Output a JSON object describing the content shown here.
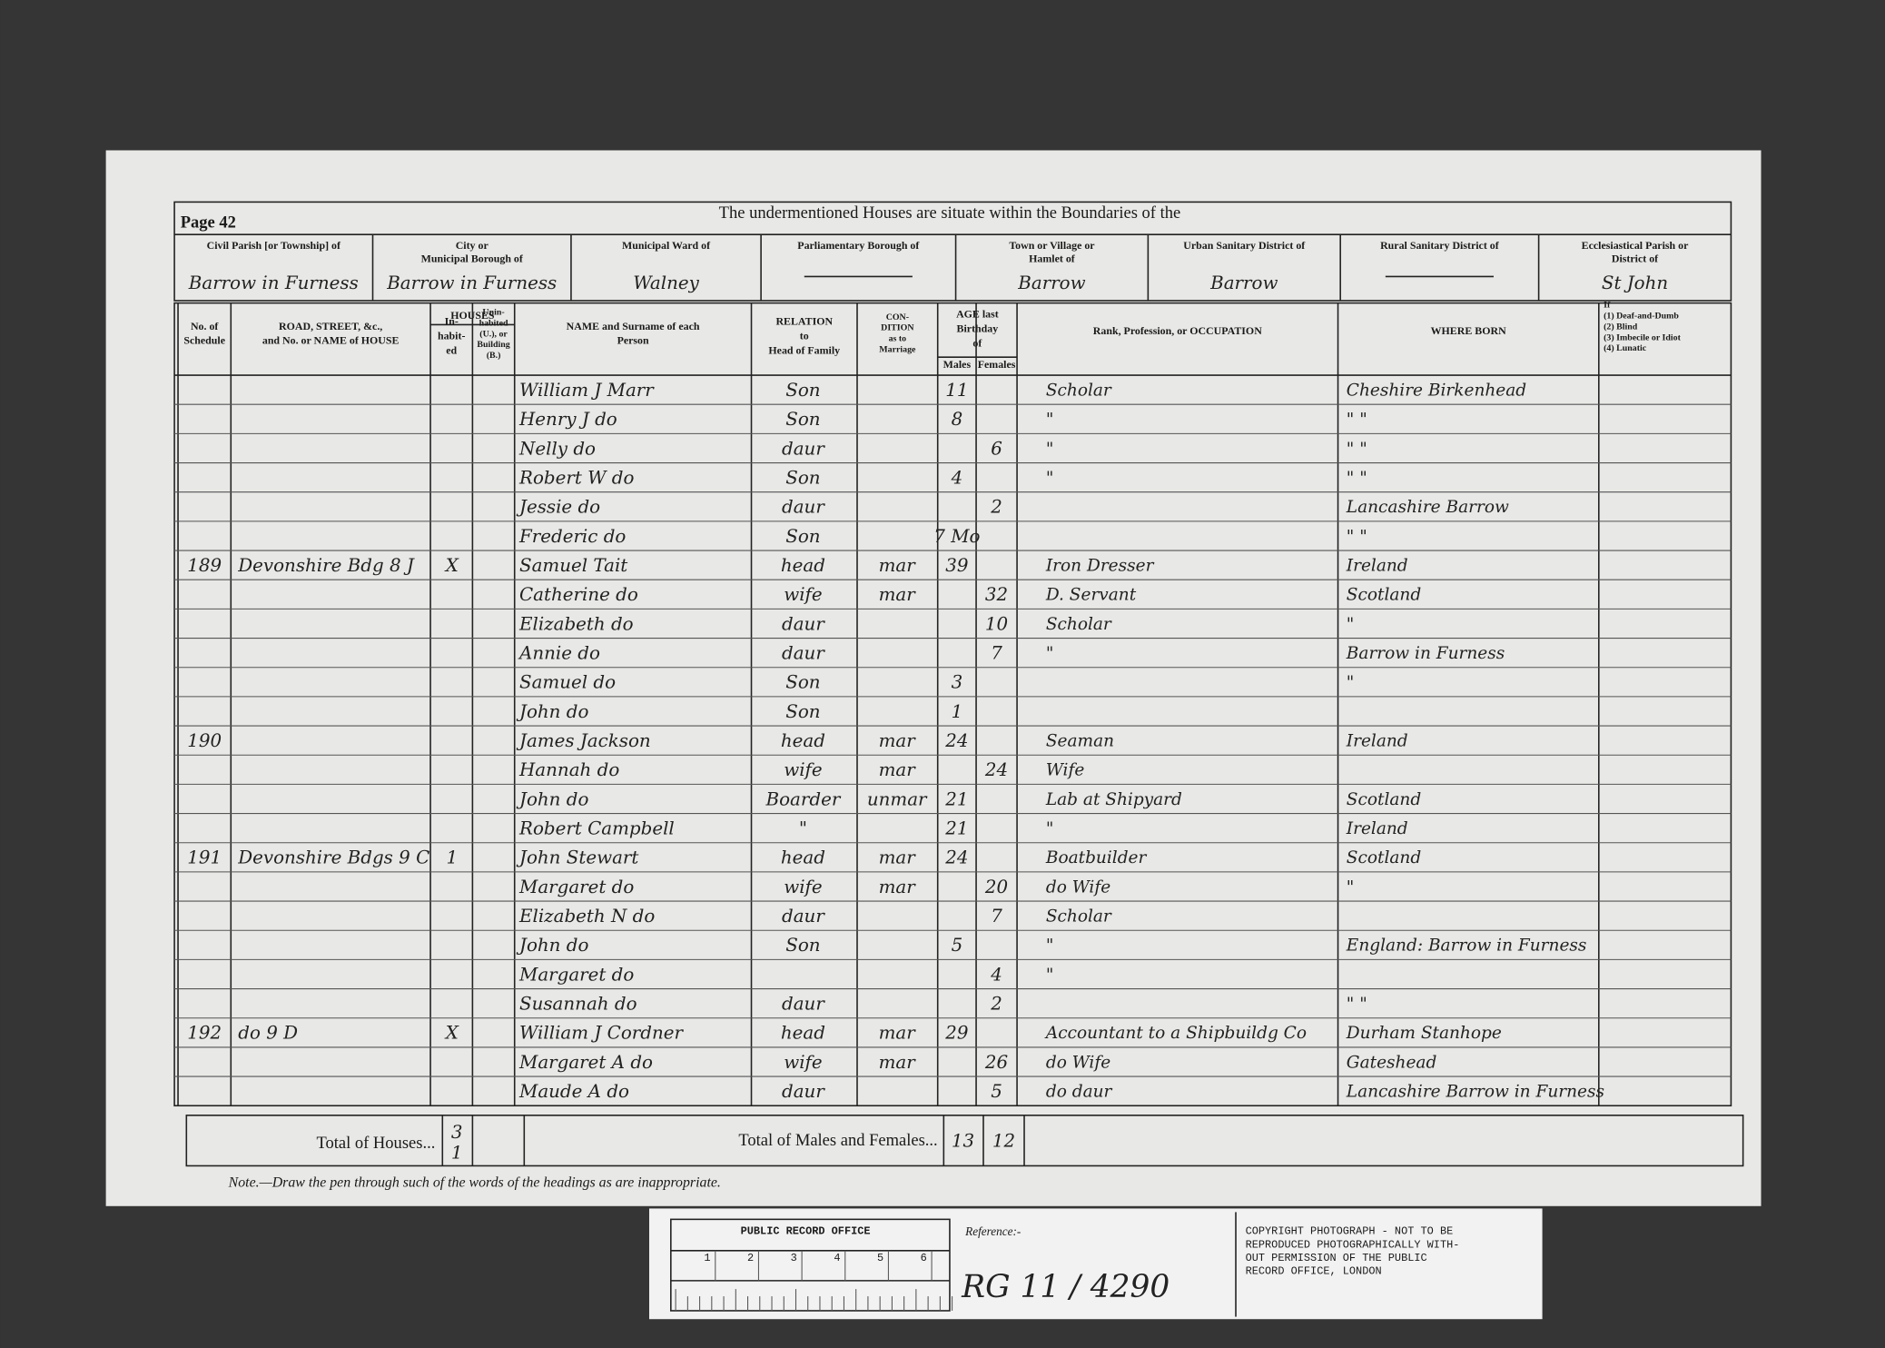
{
  "header": {
    "page": "Page 42",
    "title": "The undermentioned Houses are situate within the Boundaries of the",
    "districts": [
      {
        "label": [
          "Civil Parish [or Township] of"
        ],
        "value": "Barrow in Furness"
      },
      {
        "label": [
          "City or",
          "Municipal Borough of"
        ],
        "value": "Barrow in Furness"
      },
      {
        "label": [
          "Municipal Ward of"
        ],
        "value": "Walney"
      },
      {
        "label": [
          "Parliamentary Borough of"
        ]
      },
      {
        "label": [
          "Town or Village or",
          "Hamlet of"
        ],
        "value": "Barrow"
      },
      {
        "label": [
          "Urban Sanitary District of"
        ],
        "value": "Barrow"
      },
      {
        "label": [
          "Rural Sanitary District of"
        ]
      },
      {
        "label": [
          "Ecclesiastical Parish or",
          "District of"
        ],
        "value": "St John"
      }
    ]
  },
  "table": {
    "columns": [
      {
        "key": "schedule",
        "label": [
          "No. of",
          "Schedule"
        ]
      },
      {
        "key": "road",
        "label": [
          "ROAD, STREET, &c.,",
          "and No. or NAME of HOUSE"
        ]
      },
      {
        "key": "inhabited",
        "label": [
          "In-",
          "habit-",
          "ed"
        ]
      },
      {
        "key": "uninhabited",
        "label": [
          "Unin-",
          "habited",
          "(U.), or",
          "Building",
          "(B.)"
        ]
      },
      {
        "key": "name",
        "label": [
          "NAME and Surname of each",
          "Person"
        ]
      },
      {
        "key": "relation",
        "label": [
          "RELATION",
          "to",
          "Head of Family"
        ]
      },
      {
        "key": "condition",
        "label": [
          "CON-",
          "DITION",
          "as to",
          "Marriage"
        ]
      },
      {
        "key": "age_male",
        "label": [
          "Males"
        ]
      },
      {
        "key": "age_female",
        "label": [
          "Females"
        ]
      },
      {
        "key": "occupation",
        "label": [
          "Rank, Profession, or OCCUPATION"
        ]
      },
      {
        "key": "born",
        "label": [
          "WHERE BORN"
        ]
      },
      {
        "key": "infirmity",
        "label": [
          "If",
          "(1) Deaf-and-Dumb",
          "(2) Blind",
          "(3) Imbecile or Idiot",
          "(4) Lunatic"
        ]
      }
    ],
    "group_headers": {
      "houses": "HOUSES",
      "age": [
        "AGE last",
        "Birthday",
        "of"
      ]
    },
    "rows": [
      {
        "name": "William J Marr",
        "relation": "Son",
        "age_male": "11",
        "occupation": "Scholar",
        "born": "Cheshire Birkenhead"
      },
      {
        "name": "Henry J    do",
        "relation": "Son",
        "age_male": "8",
        "occupation": "\"",
        "born": "\"     \""
      },
      {
        "name": "Nelly        do",
        "relation": "daur",
        "age_female": "6",
        "occupation": "\"",
        "born": "\"     \""
      },
      {
        "name": "Robert W   do",
        "relation": "Son",
        "age_male": "4",
        "occupation": "\"",
        "born": "\"     \""
      },
      {
        "name": "Jessie       do",
        "relation": "daur",
        "age_female": "2",
        "born": "Lancashire Barrow"
      },
      {
        "name": "Frederic     do",
        "relation": "Son",
        "age_male": "7 Mo",
        "born": "\"     \""
      },
      {
        "schedule": "189",
        "road": "Devonshire Bdg 8 J",
        "inhabited": "X",
        "name": "Samuel Tait",
        "relation": "head",
        "condition": "mar",
        "age_male": "39",
        "occupation": "Iron Dresser",
        "born": "Ireland"
      },
      {
        "name": "Catherine   do",
        "relation": "wife",
        "condition": "mar",
        "age_female": "32",
        "occupation": "D. Servant",
        "born": "Scotland"
      },
      {
        "name": "Elizabeth   do",
        "relation": "daur",
        "age_female": "10",
        "occupation": "Scholar",
        "born": "\""
      },
      {
        "name": "Annie        do",
        "relation": "daur",
        "age_female": "7",
        "occupation": "\"",
        "born": "Barrow in Furness"
      },
      {
        "name": "Samuel      do",
        "relation": "Son",
        "age_male": "3",
        "born": "\""
      },
      {
        "name": "John         do",
        "relation": "Son",
        "age_male": "1"
      },
      {
        "schedule": "190",
        "name": "James Jackson",
        "relation": "head",
        "condition": "mar",
        "age_male": "24",
        "occupation": "Seaman",
        "born": "Ireland"
      },
      {
        "name": "Hannah      do",
        "relation": "wife",
        "condition": "mar",
        "age_female": "24",
        "occupation": "Wife"
      },
      {
        "name": "John         do",
        "relation": "Boarder",
        "condition": "unmar",
        "age_male": "21",
        "occupation": "Lab at Shipyard",
        "born": "Scotland"
      },
      {
        "name": "Robert Campbell",
        "relation": "\"",
        "age_male": "21",
        "occupation": "\"",
        "born": "Ireland"
      },
      {
        "schedule": "191",
        "road": "Devonshire Bdgs 9 C",
        "inhabited": "1",
        "name": "John Stewart",
        "relation": "head",
        "condition": "mar",
        "age_male": "24",
        "occupation": "Boatbuilder",
        "born": "Scotland"
      },
      {
        "name": "Margaret    do",
        "relation": "wife",
        "condition": "mar",
        "age_female": "20",
        "occupation": "do    Wife",
        "born": "\""
      },
      {
        "name": "Elizabeth N  do",
        "relation": "daur",
        "age_female": "7",
        "occupation": "Scholar"
      },
      {
        "name": "John         do",
        "relation": "Son",
        "age_male": "5",
        "occupation": "\"",
        "born": "England: Barrow in Furness"
      },
      {
        "name": "Margaret    do",
        "age_female": "4",
        "occupation": "\""
      },
      {
        "name": "Susannah    do",
        "relation": "daur",
        "age_female": "2",
        "born": "\"     \""
      },
      {
        "schedule": "192",
        "road": "do    9 D",
        "inhabited": "X",
        "name": "William J Cordner",
        "relation": "head",
        "condition": "mar",
        "age_male": "29",
        "occupation": "Accountant to a Shipbuildg Co",
        "born": "Durham  Stanhope"
      },
      {
        "name": "Margaret A  do",
        "relation": "wife",
        "condition": "mar",
        "age_female": "26",
        "occupation": "do          Wife",
        "born": "Gateshead"
      },
      {
        "name": "Maude A    do",
        "relation": "daur",
        "age_female": "5",
        "occupation": "do          daur",
        "born": "Lancashire Barrow in Furness"
      }
    ],
    "totals": {
      "houses_label": "Total of Houses...",
      "houses": "3",
      "uninhabited": "1",
      "persons_label": "Total of Males and Females...",
      "males": "13",
      "females": "12"
    }
  },
  "note": "Note.—Draw the pen through such of the words of the headings as are inappropriate.",
  "footer": {
    "office": "PUBLIC RECORD OFFICE",
    "ruler": [
      "1",
      "2",
      "3",
      "4",
      "5",
      "6"
    ],
    "reference_label": "Reference:-",
    "reference": "RG 11 / 4290",
    "copyright": [
      "COPYRIGHT PHOTOGRAPH - NOT TO BE",
      "REPRODUCED PHOTOGRAPHICALLY WITH-",
      "OUT PERMISSION OF THE PUBLIC",
      "RECORD OFFICE, LONDON"
    ]
  }
}
